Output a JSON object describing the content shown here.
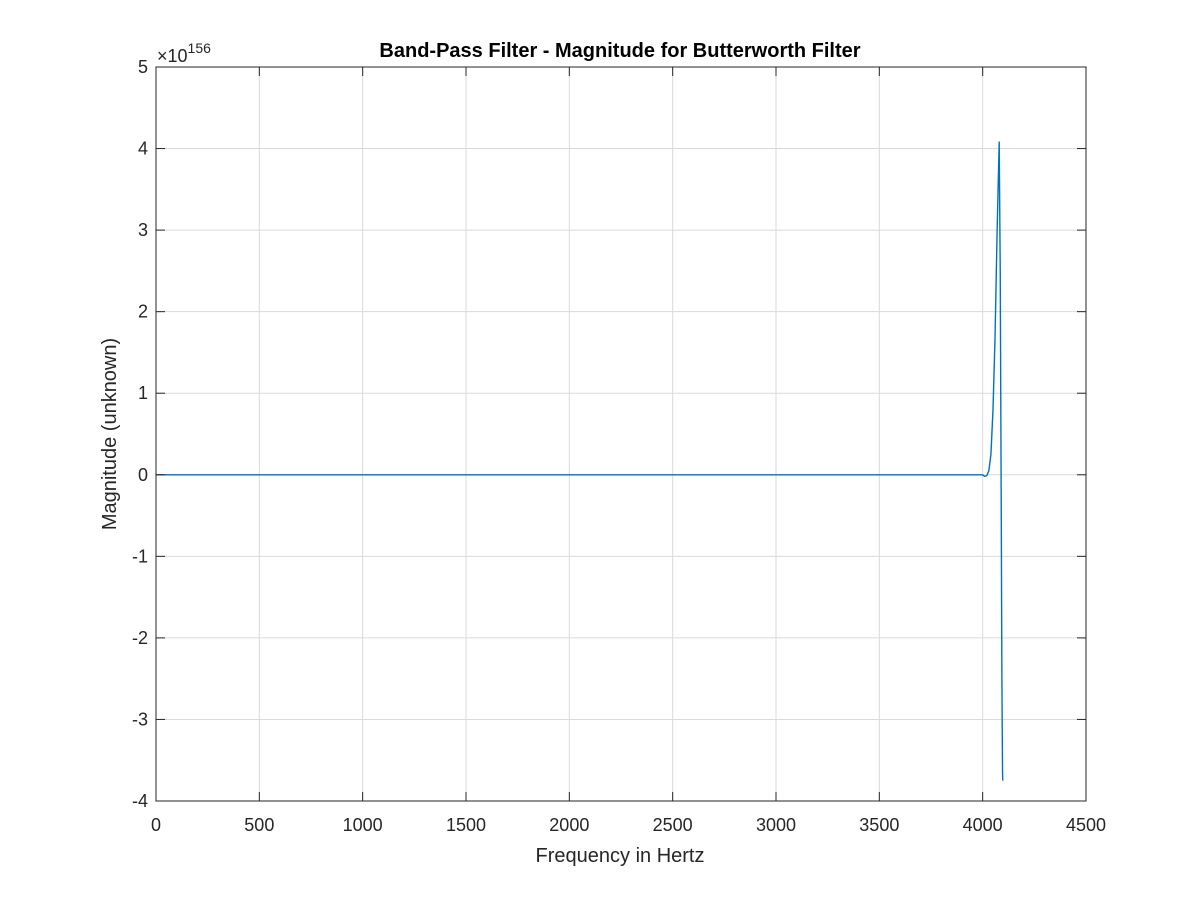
{
  "colors": {
    "line": "#0072BD",
    "grid": "#DADADA",
    "axis": "#262626",
    "background": "#FFFFFF"
  },
  "chart_data": {
    "type": "line",
    "title": "Band-Pass Filter - Magnitude for Butterworth Filter",
    "xlabel": "Frequency in Hertz",
    "ylabel": "Magnitude (unknown)",
    "y_exponent_label": "×10",
    "y_exponent_value": "156",
    "xlim": [
      0,
      4500
    ],
    "ylim": [
      -4,
      5
    ],
    "xticks": [
      0,
      500,
      1000,
      1500,
      2000,
      2500,
      3000,
      3500,
      4000,
      4500
    ],
    "yticks": [
      -4,
      -3,
      -2,
      -1,
      0,
      1,
      2,
      3,
      4,
      5
    ],
    "xtick_labels": [
      "0",
      "500",
      "1000",
      "1500",
      "2000",
      "2500",
      "3000",
      "3500",
      "4000",
      "4500"
    ],
    "ytick_labels": [
      "-4",
      "-3",
      "-2",
      "-1",
      "0",
      "1",
      "2",
      "3",
      "4",
      "5"
    ],
    "grid": true,
    "box": true,
    "series": [
      {
        "x": [
          0,
          500,
          1000,
          1500,
          2000,
          2500,
          3000,
          3500,
          3900,
          4000,
          4010,
          4020,
          4030,
          4040,
          4050,
          4060,
          4070,
          4080,
          4085,
          4090,
          4093,
          4096,
          4097
        ],
        "values": [
          0,
          0,
          0,
          0,
          0,
          0,
          0,
          0,
          0,
          0,
          -0.02,
          -0.01,
          0.05,
          0.25,
          0.8,
          1.7,
          3.0,
          4.08,
          2.5,
          -0.5,
          -2.5,
          -3.6,
          -3.75
        ]
      }
    ]
  }
}
